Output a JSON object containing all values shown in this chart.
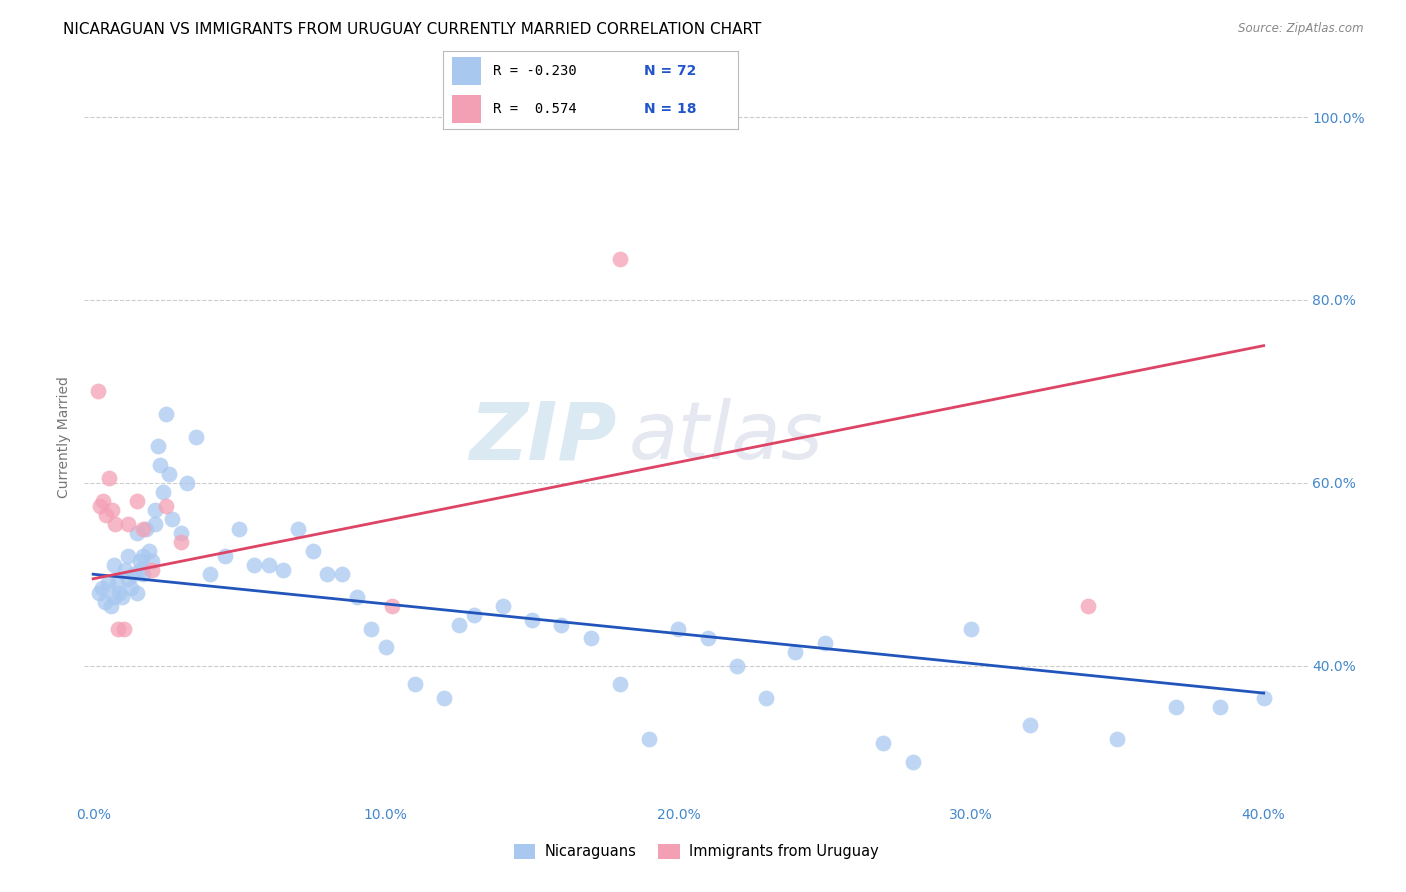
{
  "title": "NICARAGUAN VS IMMIGRANTS FROM URUGUAY CURRENTLY MARRIED CORRELATION CHART",
  "source": "Source: ZipAtlas.com",
  "ylabel": "Currently Married",
  "x_tick_labels": [
    "0.0%",
    "10.0%",
    "20.0%",
    "30.0%",
    "40.0%"
  ],
  "x_tick_positions": [
    0.0,
    10.0,
    20.0,
    30.0,
    40.0
  ],
  "y_tick_labels": [
    "40.0%",
    "60.0%",
    "80.0%",
    "100.0%"
  ],
  "y_tick_positions": [
    40.0,
    60.0,
    80.0,
    100.0
  ],
  "xlim": [
    -0.3,
    41.5
  ],
  "ylim": [
    25.0,
    105.0
  ],
  "legend_label1": "Nicaraguans",
  "legend_label2": "Immigrants from Uruguay",
  "legend_R1": "-0.230",
  "legend_N1": "72",
  "legend_R2": "0.574",
  "legend_N2": "18",
  "blue_color": "#a8c8f0",
  "pink_color": "#f4a0b4",
  "blue_line_color": "#2255bb",
  "pink_line_color": "#dd4466",
  "watermark_zip": "ZIP",
  "watermark_atlas": "atlas",
  "title_fontsize": 11,
  "axis_label_fontsize": 10,
  "tick_fontsize": 10,
  "blue_x": [
    0.2,
    0.3,
    0.4,
    0.5,
    0.6,
    0.7,
    0.7,
    0.8,
    0.9,
    1.0,
    1.1,
    1.2,
    1.2,
    1.3,
    1.4,
    1.5,
    1.5,
    1.6,
    1.6,
    1.7,
    1.7,
    1.8,
    1.9,
    2.0,
    2.1,
    2.1,
    2.2,
    2.3,
    2.4,
    2.5,
    2.6,
    2.7,
    3.0,
    3.2,
    3.5,
    4.0,
    4.5,
    5.0,
    5.5,
    6.0,
    6.5,
    7.0,
    7.5,
    8.0,
    8.5,
    9.0,
    9.5,
    10.0,
    11.0,
    12.0,
    12.5,
    13.0,
    14.0,
    15.0,
    16.0,
    17.0,
    18.0,
    19.0,
    20.0,
    21.0,
    22.0,
    23.0,
    24.0,
    25.0,
    27.0,
    28.0,
    30.0,
    32.0,
    35.0,
    37.0,
    38.5,
    40.0
  ],
  "blue_y": [
    48.0,
    48.5,
    47.0,
    49.0,
    46.5,
    47.5,
    51.0,
    49.0,
    48.0,
    47.5,
    50.5,
    49.5,
    52.0,
    48.5,
    50.0,
    54.5,
    48.0,
    51.5,
    50.5,
    52.0,
    50.0,
    55.0,
    52.5,
    51.5,
    57.0,
    55.5,
    64.0,
    62.0,
    59.0,
    67.5,
    61.0,
    56.0,
    54.5,
    60.0,
    65.0,
    50.0,
    52.0,
    55.0,
    51.0,
    51.0,
    50.5,
    55.0,
    52.5,
    50.0,
    50.0,
    47.5,
    44.0,
    42.0,
    38.0,
    36.5,
    44.5,
    45.5,
    46.5,
    45.0,
    44.5,
    43.0,
    38.0,
    32.0,
    44.0,
    43.0,
    40.0,
    36.5,
    41.5,
    42.5,
    31.5,
    29.5,
    44.0,
    33.5,
    32.0,
    35.5,
    35.5,
    36.5
  ],
  "pink_x": [
    0.15,
    0.25,
    0.35,
    0.45,
    0.55,
    0.65,
    0.75,
    0.85,
    1.05,
    1.2,
    1.5,
    1.7,
    2.0,
    2.5,
    3.0,
    10.2,
    18.0,
    34.0
  ],
  "pink_y": [
    70.0,
    57.5,
    58.0,
    56.5,
    60.5,
    57.0,
    55.5,
    44.0,
    44.0,
    55.5,
    58.0,
    55.0,
    50.5,
    57.5,
    53.5,
    46.5,
    84.5,
    46.5
  ]
}
